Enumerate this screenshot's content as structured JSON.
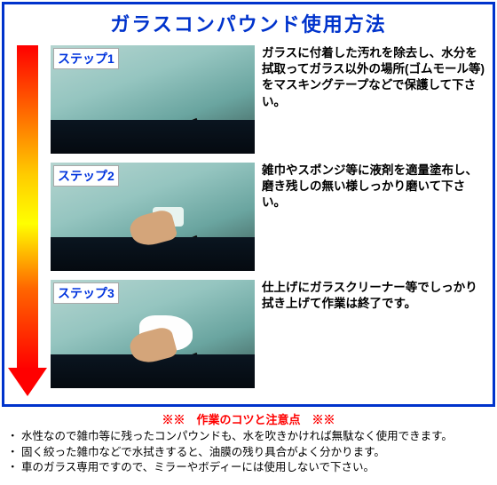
{
  "title": "ガラスコンパウンド使用方法",
  "steps": [
    {
      "label": "ステップ1",
      "desc": "ガラスに付着した汚れを除去し、水分を拭取ってガラス以外の場所(ゴムモール等)をマスキングテープなどで保護して下さい。",
      "photo": "plain"
    },
    {
      "label": "ステップ2",
      "desc": "雑巾やスポンジ等に液剤を適量塗布し、磨き残しの無い様しっかり磨いて下さい。",
      "photo": "sponge"
    },
    {
      "label": "ステップ3",
      "desc": "仕上げにガラスクリーナー等でしっかり拭き上げて作業は終了です。",
      "photo": "cloth"
    }
  ],
  "notesTitle": "※※　作業のコツと注意点　※※",
  "notes": [
    "・ 水性なので雑巾等に残ったコンパウンドも、水を吹きかければ無駄なく使用できます。",
    "・ 固く絞った雑巾などで水拭きすると、油膜の残り具合がよく分かります。",
    "・ 車のガラス専用ですので、ミラーやボディーには使用しないで下さい。"
  ]
}
